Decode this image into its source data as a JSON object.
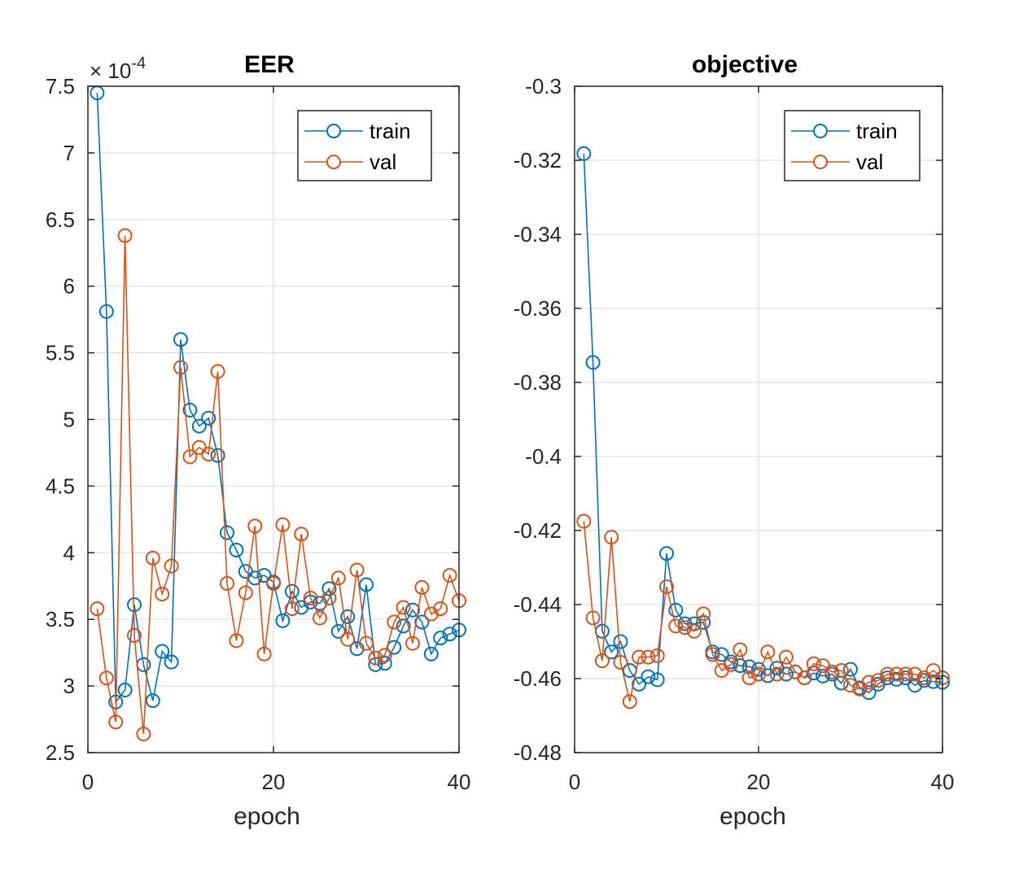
{
  "chart_data": [
    {
      "type": "line",
      "title": "EER",
      "xlabel": "epoch",
      "ylabel": "",
      "y_exponent_label": {
        "base": "× 10",
        "exponent": "-4"
      },
      "xlim": [
        0,
        40
      ],
      "ylim": [
        2.5,
        7.5
      ],
      "xticks": [
        0,
        20,
        40
      ],
      "xtick_labels": [
        "0",
        "20",
        "40"
      ],
      "yticks": [
        2.5,
        3,
        3.5,
        4,
        4.5,
        5,
        5.5,
        6,
        6.5,
        7,
        7.5
      ],
      "ytick_labels": [
        "2.5",
        "3",
        "3.5",
        "4",
        "4.5",
        "5",
        "5.5",
        "6",
        "6.5",
        "7",
        "7.5"
      ],
      "grid": true,
      "legend_position": "top-right",
      "x": [
        1,
        2,
        3,
        4,
        5,
        6,
        7,
        8,
        9,
        10,
        11,
        12,
        13,
        14,
        15,
        16,
        17,
        18,
        19,
        20,
        21,
        22,
        23,
        24,
        25,
        26,
        27,
        28,
        29,
        30,
        31,
        32,
        33,
        34,
        35,
        36,
        37,
        38,
        39,
        40
      ],
      "series": [
        {
          "name": "train",
          "color": "#0072BD",
          "values": [
            7.45,
            5.81,
            2.88,
            2.97,
            3.61,
            3.16,
            2.89,
            3.26,
            3.18,
            5.6,
            5.07,
            4.95,
            5.01,
            4.73,
            4.15,
            4.02,
            3.86,
            3.81,
            3.83,
            3.78,
            3.49,
            3.71,
            3.59,
            3.63,
            3.62,
            3.73,
            3.41,
            3.52,
            3.28,
            3.76,
            3.16,
            3.17,
            3.29,
            3.45,
            3.57,
            3.48,
            3.24,
            3.36,
            3.39,
            3.42
          ]
        },
        {
          "name": "val",
          "color": "#D95319",
          "values": [
            3.58,
            3.06,
            2.73,
            6.38,
            3.38,
            2.64,
            3.96,
            3.69,
            3.9,
            5.39,
            4.72,
            4.79,
            4.74,
            5.36,
            3.77,
            3.34,
            3.7,
            4.2,
            3.24,
            3.77,
            4.21,
            3.58,
            4.14,
            3.66,
            3.51,
            3.66,
            3.81,
            3.35,
            3.87,
            3.32,
            3.21,
            3.23,
            3.48,
            3.59,
            3.32,
            3.74,
            3.54,
            3.58,
            3.83,
            3.64
          ]
        }
      ]
    },
    {
      "type": "line",
      "title": "objective",
      "xlabel": "epoch",
      "ylabel": "",
      "xlim": [
        0,
        40
      ],
      "ylim": [
        -0.48,
        -0.3
      ],
      "xticks": [
        0,
        20,
        40
      ],
      "xtick_labels": [
        "0",
        "20",
        "40"
      ],
      "yticks": [
        -0.48,
        -0.46,
        -0.44,
        -0.42,
        -0.4,
        -0.38,
        -0.36,
        -0.34,
        -0.32,
        -0.3
      ],
      "ytick_labels": [
        "-0.48",
        "-0.46",
        "-0.44",
        "-0.42",
        "-0.4",
        "-0.38",
        "-0.36",
        "-0.34",
        "-0.32",
        "-0.3"
      ],
      "grid": true,
      "legend_position": "top-right",
      "x": [
        1,
        2,
        3,
        4,
        5,
        6,
        7,
        8,
        9,
        10,
        11,
        12,
        13,
        14,
        15,
        16,
        17,
        18,
        19,
        20,
        21,
        22,
        23,
        24,
        25,
        26,
        27,
        28,
        29,
        30,
        31,
        32,
        33,
        34,
        35,
        36,
        37,
        38,
        39,
        40
      ],
      "series": [
        {
          "name": "train",
          "color": "#0072BD",
          "values": [
            -0.3182,
            -0.3746,
            -0.4472,
            -0.4528,
            -0.45,
            -0.4578,
            -0.4615,
            -0.4595,
            -0.4603,
            -0.4262,
            -0.4415,
            -0.4452,
            -0.4452,
            -0.4448,
            -0.4528,
            -0.4535,
            -0.4555,
            -0.4565,
            -0.4568,
            -0.4575,
            -0.4592,
            -0.4572,
            -0.4588,
            -0.4582,
            -0.4598,
            -0.4585,
            -0.4593,
            -0.4588,
            -0.4612,
            -0.4575,
            -0.4625,
            -0.4638,
            -0.4615,
            -0.4598,
            -0.4602,
            -0.4598,
            -0.4618,
            -0.4605,
            -0.4608,
            -0.461
          ]
        },
        {
          "name": "val",
          "color": "#D95319",
          "values": [
            -0.4175,
            -0.4436,
            -0.4552,
            -0.4218,
            -0.4556,
            -0.4662,
            -0.4542,
            -0.4542,
            -0.4538,
            -0.4352,
            -0.4458,
            -0.4462,
            -0.4472,
            -0.4425,
            -0.4535,
            -0.4578,
            -0.4562,
            -0.4522,
            -0.4598,
            -0.4588,
            -0.4528,
            -0.4588,
            -0.4542,
            -0.4582,
            -0.4598,
            -0.456,
            -0.4565,
            -0.4582,
            -0.4578,
            -0.4618,
            -0.4628,
            -0.461,
            -0.4605,
            -0.4588,
            -0.4588,
            -0.4588,
            -0.4588,
            -0.4598,
            -0.4578,
            -0.4598
          ]
        }
      ]
    }
  ]
}
